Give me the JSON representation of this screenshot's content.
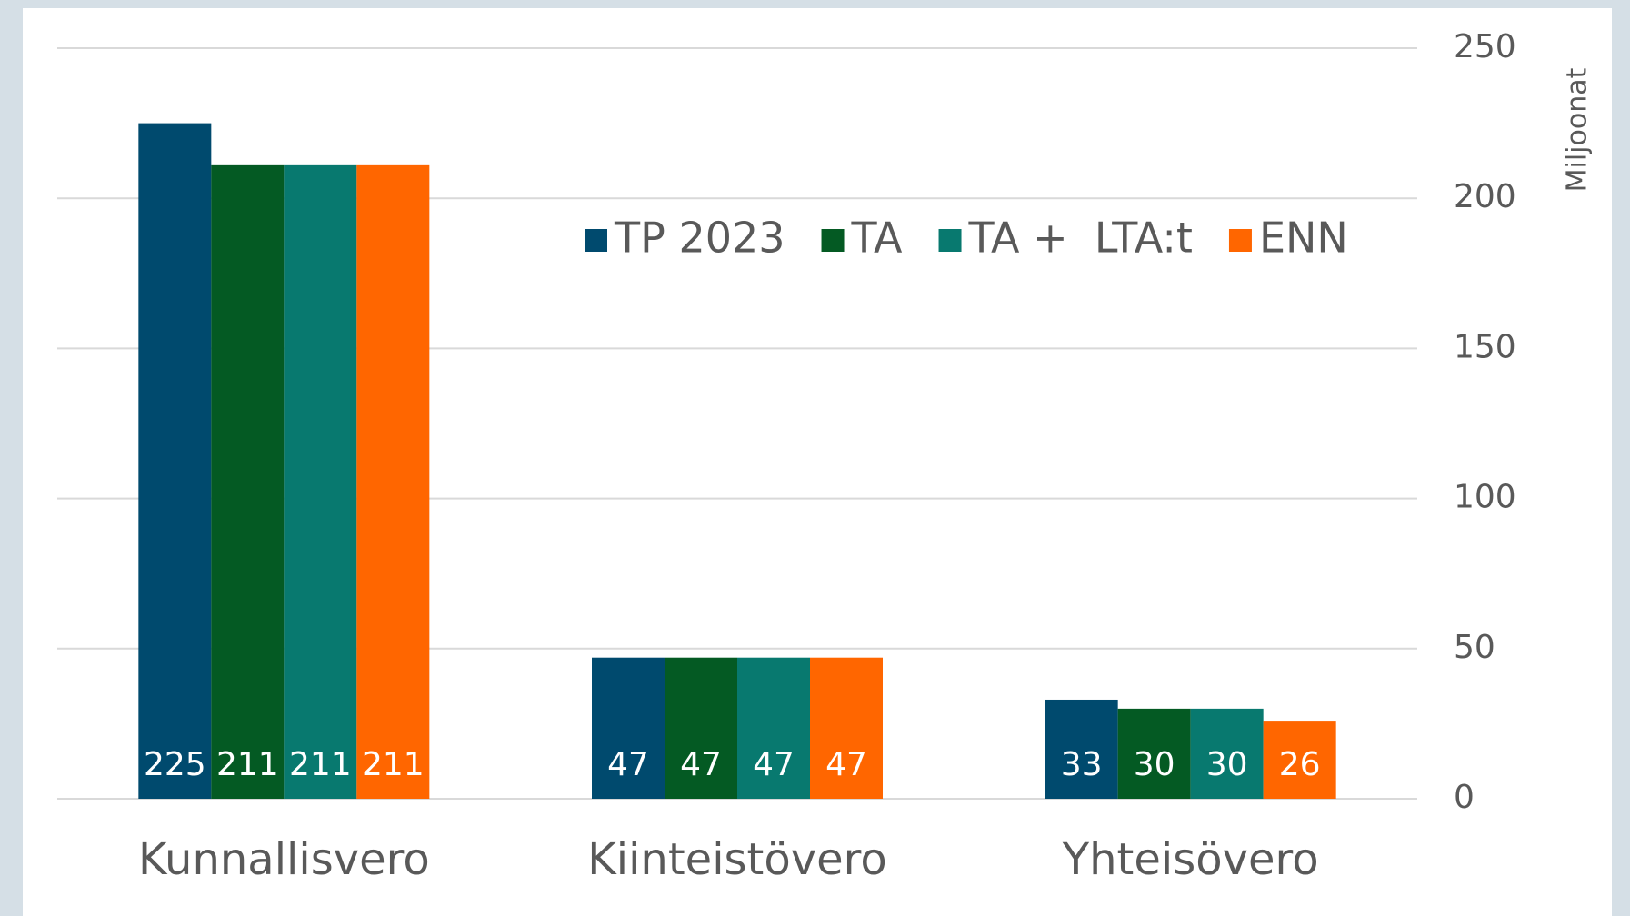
{
  "chart_data": {
    "type": "bar",
    "categories": [
      "Kunnallisvero",
      "Kiinteistövero",
      "Yhteisövero"
    ],
    "series": [
      {
        "name": "TP 2023",
        "color": "#004a6e",
        "values": [
          225,
          47,
          33
        ]
      },
      {
        "name": "TA",
        "color": "#045a23",
        "values": [
          211,
          47,
          30
        ]
      },
      {
        "name": "TA +  LTA:t",
        "color": "#08796f",
        "values": [
          211,
          47,
          30
        ]
      },
      {
        "name": "ENN",
        "color": "#ff6600",
        "values": [
          211,
          47,
          26
        ]
      }
    ],
    "ylabel": "Miljoonat",
    "ylim": [
      0,
      250
    ],
    "yticks": [
      0,
      50,
      100,
      150,
      200,
      250
    ],
    "y_axis_side": "right",
    "grid": true,
    "legend": "top"
  }
}
